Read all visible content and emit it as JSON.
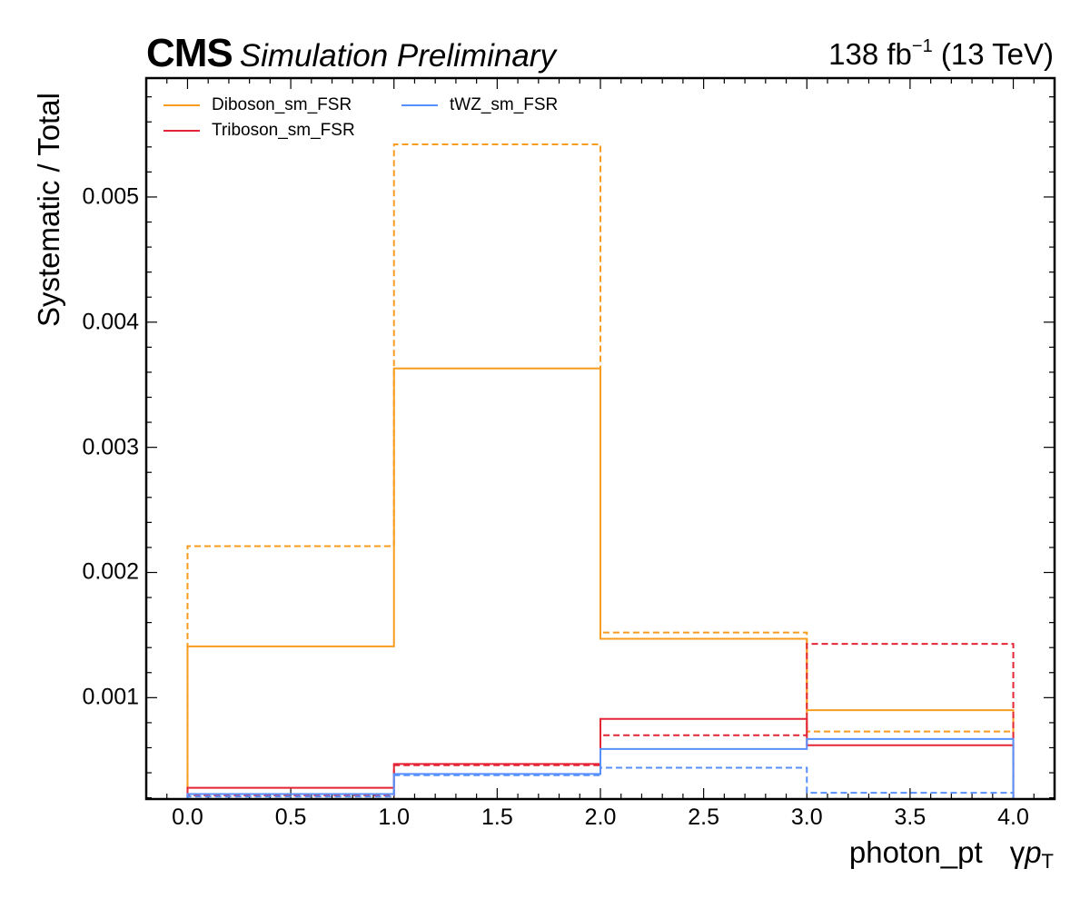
{
  "header": {
    "experiment": "CMS",
    "status": "Simulation Preliminary",
    "lumi_value": "138 fb",
    "lumi_exp": "−1",
    "energy": "(13 TeV)"
  },
  "colors": {
    "Diboson_sm_FSR": "#f89c20",
    "Triboson_sm_FSR": "#e42536",
    "tWZ_sm_FSR": "#5790fc"
  },
  "chart_data": {
    "type": "step",
    "title": "",
    "xlabel": "photon_pt",
    "xlabel_unit_symbol": "γ",
    "xlabel_unit_var": "p",
    "xlabel_unit_sub": "T",
    "ylabel": "Systematic / Total",
    "xlim": [
      -0.2,
      4.2
    ],
    "ylim": [
      0.00019,
      0.00595
    ],
    "bin_edges": [
      0,
      1,
      2,
      3,
      4
    ],
    "x_ticks": [
      "0.0",
      "0.5",
      "1.0",
      "1.5",
      "2.0",
      "2.5",
      "3.0",
      "3.5",
      "4.0"
    ],
    "y_ticks": [
      "0.001",
      "0.002",
      "0.003",
      "0.004",
      "0.005"
    ],
    "legend_position": "top-left",
    "series": [
      {
        "name": "Diboson_sm_FSR",
        "style": "solid",
        "values": [
          0.00141,
          0.00363,
          0.00147,
          0.0009
        ]
      },
      {
        "name": "Diboson_sm_FSR",
        "style": "dashed",
        "values": [
          0.00221,
          0.00542,
          0.00152,
          0.00073
        ]
      },
      {
        "name": "Triboson_sm_FSR",
        "style": "solid",
        "values": [
          0.00028,
          0.00047,
          0.00083,
          0.00062
        ]
      },
      {
        "name": "Triboson_sm_FSR",
        "style": "dashed",
        "values": [
          0.00022,
          0.00046,
          0.0007,
          0.00143
        ]
      },
      {
        "name": "tWZ_sm_FSR",
        "style": "solid",
        "values": [
          0.00023,
          0.00039,
          0.00059,
          0.00067
        ]
      },
      {
        "name": "tWZ_sm_FSR",
        "style": "dashed",
        "values": [
          0.00021,
          0.00038,
          0.00044,
          0.00024
        ]
      }
    ],
    "legend": [
      "Diboson_sm_FSR",
      "Triboson_sm_FSR",
      "tWZ_sm_FSR"
    ]
  }
}
